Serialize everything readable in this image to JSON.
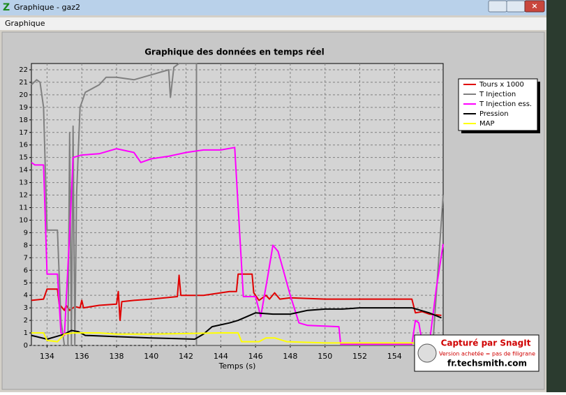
{
  "window": {
    "title": "Graphique - gaz2",
    "menu": [
      "Graphique"
    ]
  },
  "chart_data": {
    "type": "line",
    "title": "Graphique des données en temps réel",
    "x_label": "Temps (s)",
    "xlim": [
      133.1,
      156.8
    ],
    "xticks": [
      134,
      136,
      138,
      140,
      142,
      144,
      146,
      148,
      150,
      152,
      154
    ],
    "ylim": [
      0,
      22.5
    ],
    "yticks": [
      0,
      1,
      2,
      3,
      4,
      5,
      6,
      7,
      8,
      9,
      10,
      11,
      12,
      13,
      14,
      15,
      16,
      17,
      18,
      19,
      20,
      21,
      22
    ],
    "grid": true,
    "legend": "top-right",
    "series": [
      {
        "name": "Tours x 1000",
        "color": "#e00000",
        "x": [
          133.1,
          133.8,
          134.0,
          134.6,
          134.7,
          135.0,
          135.1,
          135.3,
          135.6,
          135.9,
          136.0,
          136.1,
          137,
          138,
          138.1,
          138.2,
          138.3,
          139,
          140,
          141.5,
          141.6,
          141.7,
          143,
          144.5,
          144.9,
          145.0,
          145.8,
          145.9,
          146.2,
          146.6,
          146.8,
          147.1,
          147.4,
          148,
          150,
          155,
          155.2,
          155.6,
          156,
          156.7
        ],
        "values": [
          3.6,
          3.7,
          4.5,
          4.5,
          3.3,
          2.8,
          3.2,
          2.8,
          3.1,
          3.0,
          3.6,
          3.0,
          3.2,
          3.3,
          4.3,
          2.0,
          3.5,
          3.6,
          3.7,
          3.9,
          5.6,
          4.0,
          4.0,
          4.3,
          4.3,
          5.7,
          5.7,
          4.2,
          3.6,
          4.0,
          3.7,
          4.2,
          3.7,
          3.8,
          3.7,
          3.7,
          2.6,
          2.7,
          2.5,
          2.4
        ]
      },
      {
        "name": "T Injection",
        "color": "#808080",
        "x": [
          133.1,
          133.4,
          133.6,
          133.8,
          134.0,
          134.6,
          134.8,
          135.0,
          135.2,
          135.3,
          135.4,
          135.5,
          135.6,
          135.7,
          135.9,
          136.2,
          137,
          137.4,
          138,
          139,
          140,
          141,
          141.1,
          141.3,
          141.6,
          142.6,
          142.6,
          156.2,
          156.5,
          156.8
        ],
        "values": [
          20.8,
          21.2,
          21.0,
          19,
          9.2,
          9.2,
          2,
          0,
          0,
          17,
          0,
          17.5,
          0,
          12,
          19,
          20.2,
          20.8,
          21.4,
          21.4,
          21.2,
          21.6,
          22,
          19.8,
          22.2,
          22.5,
          22.5,
          0,
          0,
          6,
          12
        ]
      },
      {
        "name": "T Injection ess.",
        "color": "#ff00ff",
        "x": [
          133.1,
          133.3,
          133.8,
          134.0,
          134.6,
          134.8,
          135.0,
          135.3,
          135.5,
          136,
          137,
          138,
          139,
          139.4,
          140,
          141,
          142,
          143,
          144,
          144.8,
          145.3,
          146,
          146.3,
          146.7,
          147,
          147.3,
          148,
          148.5,
          149,
          150.8,
          150.9,
          155,
          155.2,
          155.4,
          155.6,
          156,
          156.4,
          156.8
        ],
        "values": [
          14.6,
          14.4,
          14.4,
          5.7,
          5.7,
          1,
          0.8,
          9,
          15,
          15.2,
          15.3,
          15.7,
          15.4,
          14.6,
          14.9,
          15.1,
          15.4,
          15.6,
          15.6,
          15.8,
          3.9,
          3.9,
          2.3,
          5.5,
          8.0,
          7.5,
          4,
          1.8,
          1.6,
          1.5,
          0.1,
          0.1,
          2.0,
          1.8,
          0.2,
          0.1,
          4.5,
          8.1
        ]
      },
      {
        "name": "Pression",
        "color": "#000000",
        "x": [
          133.1,
          134,
          134.5,
          135,
          135.4,
          135.8,
          136.2,
          138,
          140,
          142.5,
          143,
          143.5,
          144.5,
          145,
          146,
          147,
          148,
          149,
          150,
          151,
          152,
          153,
          155,
          156,
          156.7
        ],
        "values": [
          0.8,
          0.5,
          0.7,
          0.9,
          1.2,
          1.1,
          0.8,
          0.7,
          0.6,
          0.5,
          0.9,
          1.5,
          1.8,
          2.0,
          2.6,
          2.5,
          2.5,
          2.8,
          2.9,
          2.9,
          3.0,
          3.0,
          3.0,
          2.6,
          2.2
        ]
      },
      {
        "name": "MAP",
        "color": "#ffff00",
        "x": [
          133.1,
          133.8,
          134,
          134.6,
          135,
          135.5,
          136,
          137,
          138,
          140,
          144,
          145,
          145.2,
          146.2,
          146.6,
          147.1,
          147.8,
          150,
          155,
          156
        ],
        "values": [
          1.0,
          1.0,
          0.4,
          0.3,
          0.9,
          1.0,
          1.0,
          1.0,
          0.9,
          0.9,
          1.0,
          1.0,
          0.3,
          0.3,
          0.6,
          0.6,
          0.3,
          0.2,
          0.2,
          0.1
        ]
      }
    ]
  },
  "watermark": {
    "title": "Capturé par SnagIt",
    "note": "Version achetée = pas de filigrane",
    "site": "fr.techsmith.com"
  }
}
